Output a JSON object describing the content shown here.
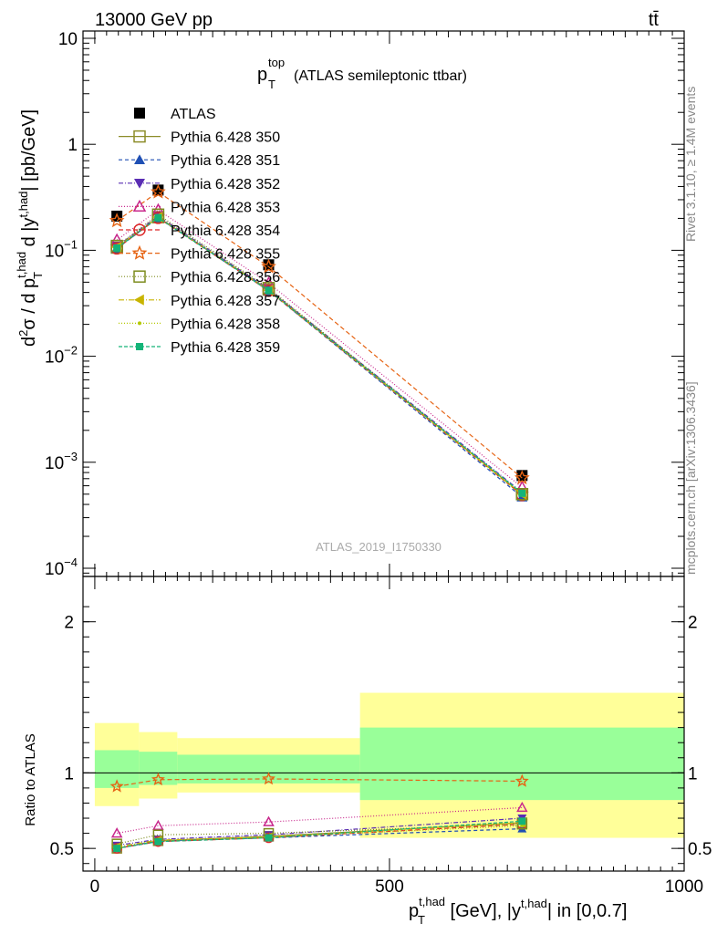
{
  "header": {
    "left": "13000 GeV pp",
    "right": "tt̄",
    "side_rivet": "Rivet 3.1.10, ≥ 1.4M events",
    "side_mcplots": "mcplots.cern.ch [arXiv:1306.3436]",
    "watermark": "ATLAS_2019_I1750330"
  },
  "chart_data": [
    {
      "type": "scatter",
      "title_main": "p",
      "title_sup": "top",
      "title_sub": "T",
      "title_rest": "(ATLAS semileptonic ttbar)",
      "ylabel": "d²σ / d p_T^{t,had} d |y^{t,had}| [pb/GeV]",
      "yscale": "log",
      "ylim": [
        0.0001,
        10
      ],
      "xlim": [
        -20,
        1000
      ],
      "ytick_labels": [
        "10",
        "1",
        "10⁻¹",
        "10⁻²",
        "10⁻³",
        "10⁻⁴"
      ],
      "x": [
        37.5,
        107.5,
        295,
        725
      ],
      "bin_edges": [
        0,
        75,
        140,
        450,
        1000
      ],
      "series": [
        {
          "name": "ATLAS",
          "color": "#000000",
          "marker": "square-filled",
          "dash": "none",
          "values": [
            0.21,
            0.37,
            0.073,
            0.00075
          ]
        },
        {
          "name": "Pythia 6.428 350",
          "color": "#8c8c28",
          "marker": "square-open",
          "dash": "solid",
          "values": [
            0.106,
            0.205,
            0.0425,
            0.0005
          ]
        },
        {
          "name": "Pythia 6.428 351",
          "color": "#1f4fb4",
          "marker": "triangle-up-filled",
          "dash": "4,3",
          "values": [
            0.104,
            0.203,
            0.0415,
            0.00047
          ]
        },
        {
          "name": "Pythia 6.428 352",
          "color": "#5a2db4",
          "marker": "triangle-down-filled",
          "dash": "5,2,1,2",
          "values": [
            0.109,
            0.21,
            0.043,
            0.00052
          ]
        },
        {
          "name": "Pythia 6.428 353",
          "color": "#c8288c",
          "marker": "triangle-up-open",
          "dash": "1,2",
          "values": [
            0.125,
            0.24,
            0.049,
            0.00058
          ]
        },
        {
          "name": "Pythia 6.428 354",
          "color": "#dc2828",
          "marker": "circle-open",
          "dash": "5,3",
          "values": [
            0.104,
            0.202,
            0.0415,
            0.00049
          ]
        },
        {
          "name": "Pythia 6.428 355",
          "color": "#e66414",
          "marker": "star-open",
          "dash": "5,3",
          "values": [
            0.19,
            0.355,
            0.07,
            0.00071
          ]
        },
        {
          "name": "Pythia 6.428 356",
          "color": "#7d8c1e",
          "marker": "square-open",
          "dash": "1,2",
          "values": [
            0.11,
            0.217,
            0.044,
            0.0005
          ]
        },
        {
          "name": "Pythia 6.428 357",
          "color": "#c8b400",
          "marker": "triangle-left-filled",
          "dash": "6,2,1,2",
          "values": [
            0.107,
            0.205,
            0.042,
            0.0005
          ]
        },
        {
          "name": "Pythia 6.428 358",
          "color": "#b4c800",
          "marker": "dot",
          "dash": "1,2",
          "values": [
            0.105,
            0.204,
            0.0418,
            0.00049
          ]
        },
        {
          "name": "Pythia 6.428 359",
          "color": "#14b478",
          "marker": "square-filled-small",
          "dash": "4,2",
          "values": [
            0.105,
            0.203,
            0.0418,
            0.00051
          ]
        }
      ]
    },
    {
      "type": "scatter",
      "ylabel": "Ratio to ATLAS",
      "xlabel": "p_T^{t,had} [GeV], |y^{t,had}| in [0,0.7]",
      "ylim": [
        0.35,
        2.3
      ],
      "xlim": [
        -20,
        1000
      ],
      "xtick_labels": [
        "0",
        "500",
        "1000"
      ],
      "ytick_labels": [
        "2",
        "1",
        "0.5"
      ],
      "bands": [
        {
          "x0": 0,
          "x1": 75,
          "inner": [
            0.9,
            1.15
          ],
          "outer": [
            0.78,
            1.33
          ]
        },
        {
          "x0": 75,
          "x1": 140,
          "inner": [
            0.92,
            1.14
          ],
          "outer": [
            0.83,
            1.27
          ]
        },
        {
          "x0": 140,
          "x1": 450,
          "inner": [
            0.93,
            1.12
          ],
          "outer": [
            0.87,
            1.23
          ]
        },
        {
          "x0": 450,
          "x1": 1000,
          "inner": [
            0.82,
            1.3
          ],
          "outer": [
            0.57,
            1.53
          ]
        }
      ],
      "x": [
        37.5,
        107.5,
        295,
        725
      ],
      "series": [
        {
          "name": "Pythia 6.428 350",
          "values": [
            0.5,
            0.55,
            0.58,
            0.67
          ]
        },
        {
          "name": "Pythia 6.428 351",
          "values": [
            0.5,
            0.55,
            0.57,
            0.63
          ]
        },
        {
          "name": "Pythia 6.428 352",
          "values": [
            0.52,
            0.56,
            0.59,
            0.7
          ]
        },
        {
          "name": "Pythia 6.428 353",
          "values": [
            0.6,
            0.65,
            0.675,
            0.77
          ]
        },
        {
          "name": "Pythia 6.428 354",
          "values": [
            0.5,
            0.545,
            0.57,
            0.66
          ]
        },
        {
          "name": "Pythia 6.428 355",
          "values": [
            0.91,
            0.955,
            0.96,
            0.945
          ]
        },
        {
          "name": "Pythia 6.428 356",
          "values": [
            0.53,
            0.59,
            0.6,
            0.66
          ]
        },
        {
          "name": "Pythia 6.428 357",
          "values": [
            0.51,
            0.555,
            0.575,
            0.67
          ]
        },
        {
          "name": "Pythia 6.428 358",
          "values": [
            0.5,
            0.55,
            0.575,
            0.65
          ]
        },
        {
          "name": "Pythia 6.428 359",
          "values": [
            0.5,
            0.545,
            0.57,
            0.68
          ]
        }
      ]
    }
  ]
}
